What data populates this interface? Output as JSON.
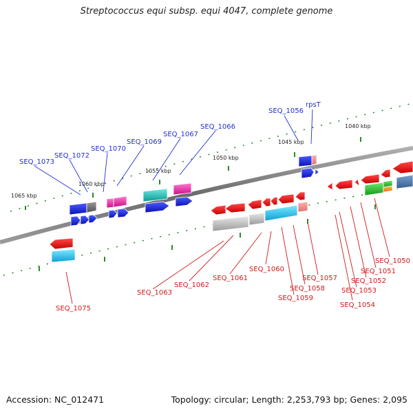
{
  "title": "Streptococcus equi subsp. equi 4047, complete genome",
  "accession": "Accession: NC_012471",
  "stats": "Topology: circular; Length: 2,253,793 bp; Genes: 2,095",
  "colors": {
    "backbone": "#808080",
    "ticks": "#2a8a2a",
    "forward_label": "#1f2fd0",
    "reverse_label": "#d01818"
  },
  "kbp_labels": [
    {
      "id": "k1040",
      "text": "1040 kbp"
    },
    {
      "id": "k1045",
      "text": "1045 kbp"
    },
    {
      "id": "k1050",
      "text": "1050 kbp"
    },
    {
      "id": "k1055",
      "text": "1055 kbp"
    },
    {
      "id": "k1060",
      "text": "1060 kbp"
    },
    {
      "id": "k1065",
      "text": "1065 kbp"
    }
  ],
  "genes_forward": [
    {
      "id": "f1056",
      "label": "SEQ_1056"
    },
    {
      "id": "frpsT",
      "label": "rpsT"
    },
    {
      "id": "f1066",
      "label": "SEQ_1066"
    },
    {
      "id": "f1067",
      "label": "SEQ_1067"
    },
    {
      "id": "f1069",
      "label": "SEQ_1069"
    },
    {
      "id": "f1070",
      "label": "SEQ_1070"
    },
    {
      "id": "f1072",
      "label": "SEQ_1072"
    },
    {
      "id": "f1073",
      "label": "SEQ_1073"
    }
  ],
  "genes_reverse": [
    {
      "id": "r1050",
      "label": "SEQ_1050"
    },
    {
      "id": "r1051",
      "label": "SEQ_1051"
    },
    {
      "id": "r1052",
      "label": "SEQ_1052"
    },
    {
      "id": "r1053",
      "label": "SEQ_1053"
    },
    {
      "id": "r1054",
      "label": "SEQ_1054"
    },
    {
      "id": "r1057",
      "label": "SEQ_1057"
    },
    {
      "id": "r1058",
      "label": "SEQ_1058"
    },
    {
      "id": "r1059",
      "label": "SEQ_1059"
    },
    {
      "id": "r1060",
      "label": "SEQ_1060"
    },
    {
      "id": "r1061",
      "label": "SEQ_1061"
    },
    {
      "id": "r1062",
      "label": "SEQ_1062"
    },
    {
      "id": "r1063",
      "label": "SEQ_1063"
    },
    {
      "id": "r1075",
      "label": "SEQ_1075"
    }
  ]
}
